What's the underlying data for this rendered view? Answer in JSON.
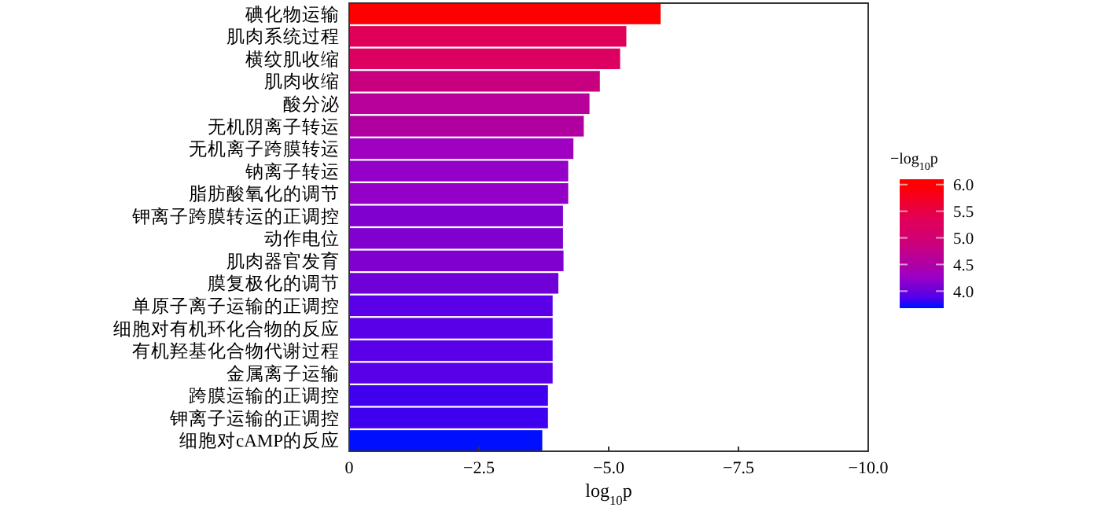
{
  "chart_data": {
    "type": "bar",
    "orientation": "horizontal",
    "xlabel": "log$_{10}$p",
    "clabel": "−log$_{10}$p",
    "categories": [
      "碘化物运输",
      "肌肉系统过程",
      "横纹肌收缩",
      "肌肉收缩",
      "酸分泌",
      "无机阴离子转运",
      "无机离子跨膜转运",
      "钠离子转运",
      "脂肪酸氧化的调节",
      "钾离子跨膜转运的正调控",
      "动作电位",
      "肌肉器官发育",
      "膜复极化的调节",
      "单原子离子运输的正调控",
      "细胞对有机环化合物的反应",
      "有机羟基化合物代谢过程",
      "金属离子运输",
      "跨膜运输的正调控",
      "钾离子运输的正调控",
      "细胞对cAMP的反应"
    ],
    "values": [
      -6.0,
      -5.34,
      -5.22,
      -4.83,
      -4.63,
      -4.52,
      -4.32,
      -4.22,
      -4.22,
      -4.12,
      -4.12,
      -4.13,
      -4.03,
      -3.92,
      -3.92,
      -3.92,
      -3.92,
      -3.83,
      -3.83,
      -3.72
    ],
    "colors": [
      "#ff0000",
      "#e0005a",
      "#dc0060",
      "#c80080",
      "#b8009a",
      "#b000a0",
      "#a000c0",
      "#9400c8",
      "#9400c8",
      "#8000d0",
      "#8000d0",
      "#8000d0",
      "#7000d8",
      "#5a00e8",
      "#5a00e8",
      "#5a00e8",
      "#5a00e8",
      "#4000f0",
      "#4000f0",
      "#0010ff"
    ],
    "xlim": [
      0,
      -10
    ],
    "xticks": [
      0,
      {
        "value": -2.5,
        "label": "−2.5"
      },
      {
        "value": -5,
        "label": "−5.0"
      },
      {
        "value": -7.5,
        "label": "−7.5"
      },
      {
        "value": -10,
        "label": "−10.0"
      }
    ],
    "clim": [
      3.68,
      6.1
    ],
    "cticks": [
      {
        "value": 4,
        "label": "4.0"
      },
      {
        "value": 4.5,
        "label": "4.5"
      },
      {
        "value": 5,
        "label": "5.0"
      },
      {
        "value": 5.5,
        "label": "5.5"
      },
      {
        "value": 6,
        "label": "6.0"
      }
    ],
    "grid": false
  }
}
